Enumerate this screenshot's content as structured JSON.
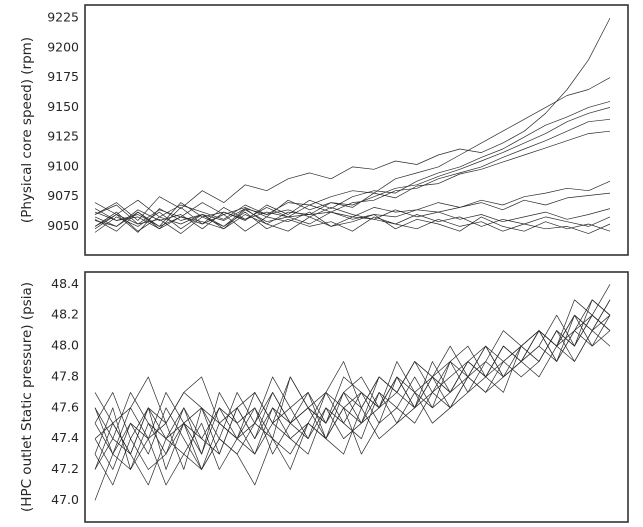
{
  "chart_data": [
    {
      "type": "line",
      "ylabel": "(Physical core speed) (rpm)",
      "color": "#2b2b2b",
      "ylim": [
        9026,
        9236
      ],
      "yticks": [
        9050,
        9075,
        9100,
        9125,
        9150,
        9175,
        9200,
        9225
      ],
      "series": [
        {
          "values": [
            9060,
            9070,
            9055,
            9075,
            9065,
            9080,
            9070,
            9085,
            9080,
            9090,
            9095,
            9090,
            9100,
            9098,
            9105,
            9102,
            9110,
            9115,
            9112,
            9120,
            9130,
            9145,
            9165,
            9190,
            9225
          ]
        },
        {
          "values": [
            9050,
            9060,
            9045,
            9065,
            9055,
            9060,
            9050,
            9065,
            9060,
            9070,
            9068,
            9075,
            9080,
            9078,
            9090,
            9095,
            9100,
            9110,
            9120,
            9130,
            9140,
            9150,
            9160,
            9165,
            9175
          ]
        },
        {
          "values": [
            9065,
            9055,
            9060,
            9050,
            9070,
            9058,
            9062,
            9055,
            9068,
            9060,
            9072,
            9065,
            9075,
            9080,
            9078,
            9088,
            9095,
            9100,
            9108,
            9115,
            9125,
            9135,
            9142,
            9150,
            9155
          ]
        },
        {
          "values": [
            9045,
            9058,
            9050,
            9062,
            9048,
            9060,
            9055,
            9065,
            9052,
            9062,
            9060,
            9070,
            9068,
            9075,
            9082,
            9085,
            9092,
            9098,
            9105,
            9112,
            9120,
            9128,
            9138,
            9145,
            9150
          ]
        },
        {
          "values": [
            9055,
            9050,
            9062,
            9048,
            9058,
            9052,
            9066,
            9056,
            9062,
            9058,
            9068,
            9062,
            9070,
            9072,
            9080,
            9082,
            9090,
            9095,
            9100,
            9108,
            9115,
            9122,
            9130,
            9138,
            9140
          ]
        },
        {
          "values": [
            9060,
            9068,
            9052,
            9064,
            9058,
            9070,
            9060,
            9066,
            9058,
            9072,
            9064,
            9070,
            9066,
            9078,
            9074,
            9084,
            9086,
            9094,
            9098,
            9104,
            9110,
            9116,
            9122,
            9128,
            9130
          ]
        },
        {
          "values": [
            9058,
            9050,
            9064,
            9055,
            9060,
            9048,
            9062,
            9056,
            9066,
            9058,
            9060,
            9062,
            9058,
            9066,
            9062,
            9064,
            9070,
            9066,
            9072,
            9068,
            9075,
            9078,
            9082,
            9080,
            9088
          ]
        },
        {
          "values": [
            9050,
            9062,
            9046,
            9058,
            9052,
            9060,
            9048,
            9064,
            9054,
            9058,
            9052,
            9062,
            9056,
            9060,
            9058,
            9064,
            9062,
            9066,
            9070,
            9064,
            9072,
            9068,
            9074,
            9076,
            9078
          ]
        },
        {
          "values": [
            9062,
            9055,
            9058,
            9048,
            9066,
            9052,
            9060,
            9046,
            9058,
            9054,
            9062,
            9050,
            9058,
            9056,
            9052,
            9060,
            9054,
            9058,
            9050,
            9056,
            9052,
            9058,
            9054,
            9050,
            9058
          ]
        },
        {
          "values": [
            9048,
            9060,
            9052,
            9056,
            9044,
            9058,
            9050,
            9062,
            9048,
            9056,
            9050,
            9054,
            9046,
            9058,
            9052,
            9048,
            9056,
            9050,
            9054,
            9046,
            9052,
            9048,
            9050,
            9044,
            9052
          ]
        },
        {
          "values": [
            9056,
            9046,
            9062,
            9050,
            9058,
            9054,
            9048,
            9060,
            9052,
            9046,
            9058,
            9050,
            9054,
            9060,
            9048,
            9056,
            9052,
            9046,
            9058,
            9050,
            9046,
            9054,
            9048,
            9052,
            9046
          ]
        },
        {
          "values": [
            9070,
            9060,
            9072,
            9058,
            9068,
            9062,
            9056,
            9068,
            9060,
            9064,
            9058,
            9066,
            9060,
            9056,
            9064,
            9058,
            9062,
            9056,
            9060,
            9054,
            9058,
            9062,
            9056,
            9060,
            9065
          ]
        }
      ]
    },
    {
      "type": "line",
      "ylabel": "(HPC outlet Static pressure) (psia)",
      "color": "#2b2b2b",
      "ylim": [
        46.86,
        48.48
      ],
      "yticks": [
        {
          "value": 47,
          "label": "47.0"
        },
        47.2,
        47.4,
        47.6,
        47.8,
        {
          "value": 48,
          "label": "48.0"
        },
        48.2,
        48.4
      ],
      "series": [
        {
          "values": [
            47.5,
            47.3,
            47.6,
            47.4,
            47.5,
            47.2,
            47.6,
            47.5,
            47.4,
            47.7,
            47.5,
            47.6,
            47.4,
            47.7,
            47.6,
            47.5,
            47.8,
            47.7,
            47.6,
            47.8,
            47.7,
            47.9,
            47.8,
            47.9,
            48.0,
            47.9,
            48.1,
            48.0,
            48.2,
            48.1
          ]
        },
        {
          "values": [
            47.3,
            47.6,
            47.2,
            47.5,
            47.3,
            47.6,
            47.4,
            47.3,
            47.6,
            47.4,
            47.7,
            47.5,
            47.6,
            47.5,
            47.7,
            47.8,
            47.6,
            47.7,
            47.9,
            47.7,
            47.8,
            47.9,
            47.8,
            48.0,
            47.9,
            48.1,
            48.0,
            48.2,
            48.1,
            48.3
          ]
        },
        {
          "values": [
            47.6,
            47.4,
            47.7,
            47.5,
            47.4,
            47.6,
            47.3,
            47.7,
            47.5,
            47.6,
            47.4,
            47.8,
            47.6,
            47.5,
            47.7,
            47.6,
            47.8,
            47.7,
            47.9,
            47.8,
            47.7,
            47.9,
            48.0,
            47.8,
            48.0,
            48.1,
            47.9,
            48.2,
            48.0,
            48.2
          ]
        },
        {
          "values": [
            47.2,
            47.4,
            47.3,
            47.1,
            47.4,
            47.3,
            47.5,
            47.2,
            47.4,
            47.3,
            47.5,
            47.4,
            47.3,
            47.6,
            47.4,
            47.5,
            47.7,
            47.5,
            47.6,
            47.8,
            47.6,
            47.7,
            47.9,
            47.8,
            47.9,
            48.0,
            47.9,
            48.1,
            48.0,
            48.1
          ]
        },
        {
          "values": [
            47.4,
            47.2,
            47.5,
            47.3,
            47.6,
            47.4,
            47.2,
            47.5,
            47.4,
            47.6,
            47.3,
            47.5,
            47.6,
            47.4,
            47.7,
            47.5,
            47.6,
            47.8,
            47.6,
            47.7,
            47.9,
            47.7,
            47.8,
            48.0,
            47.9,
            48.0,
            48.2,
            48.0,
            48.3,
            48.2
          ]
        },
        {
          "values": [
            47.7,
            47.5,
            47.6,
            47.8,
            47.5,
            47.7,
            47.6,
            47.4,
            47.7,
            47.5,
            47.8,
            47.6,
            47.7,
            47.5,
            47.8,
            47.7,
            47.6,
            47.9,
            47.7,
            47.8,
            47.9,
            48.0,
            47.8,
            48.0,
            47.9,
            48.1,
            48.0,
            48.2,
            48.1,
            48.3
          ]
        },
        {
          "values": [
            47.3,
            47.1,
            47.4,
            47.2,
            47.3,
            47.5,
            47.2,
            47.4,
            47.3,
            47.5,
            47.4,
            47.2,
            47.5,
            47.4,
            47.6,
            47.3,
            47.5,
            47.6,
            47.5,
            47.7,
            47.6,
            47.8,
            47.7,
            47.8,
            47.9,
            47.8,
            48.0,
            47.9,
            48.1,
            48.0
          ]
        },
        {
          "values": [
            47.0,
            47.3,
            47.2,
            47.4,
            47.1,
            47.3,
            47.2,
            47.4,
            47.3,
            47.1,
            47.4,
            47.3,
            47.5,
            47.4,
            47.3,
            47.6,
            47.4,
            47.5,
            47.7,
            47.5,
            47.6,
            47.8,
            47.7,
            47.9,
            47.8,
            47.9,
            48.1,
            48.0,
            48.2,
            48.1
          ]
        },
        {
          "values": [
            47.5,
            47.7,
            47.4,
            47.6,
            47.5,
            47.7,
            47.8,
            47.5,
            47.6,
            47.7,
            47.5,
            47.8,
            47.6,
            47.7,
            47.9,
            47.6,
            47.8,
            47.7,
            47.9,
            47.8,
            48.0,
            47.8,
            47.9,
            48.1,
            48.0,
            48.1,
            48.0,
            48.3,
            48.2,
            48.4
          ]
        },
        {
          "values": [
            47.4,
            47.5,
            47.3,
            47.6,
            47.2,
            47.5,
            47.4,
            47.6,
            47.5,
            47.3,
            47.6,
            47.4,
            47.5,
            47.7,
            47.5,
            47.4,
            47.7,
            47.6,
            47.8,
            47.6,
            47.7,
            47.9,
            47.8,
            47.7,
            48.0,
            47.9,
            48.1,
            47.9,
            48.1,
            48.2
          ]
        },
        {
          "values": [
            47.6,
            47.3,
            47.5,
            47.4,
            47.7,
            47.5,
            47.6,
            47.3,
            47.6,
            47.4,
            47.6,
            47.5,
            47.7,
            47.4,
            47.6,
            47.7,
            47.5,
            47.8,
            47.6,
            47.9,
            47.7,
            47.8,
            48.0,
            47.9,
            48.0,
            48.1,
            47.9,
            48.1,
            48.2,
            48.1
          ]
        },
        {
          "values": [
            47.2,
            47.5,
            47.3,
            47.6,
            47.4,
            47.5,
            47.3,
            47.6,
            47.4,
            47.5,
            47.7,
            47.5,
            47.4,
            47.6,
            47.5,
            47.7,
            47.6,
            47.8,
            47.7,
            47.6,
            47.9,
            47.8,
            48.0,
            47.8,
            47.9,
            48.1,
            48.0,
            48.1,
            48.3,
            48.2
          ]
        }
      ]
    }
  ]
}
